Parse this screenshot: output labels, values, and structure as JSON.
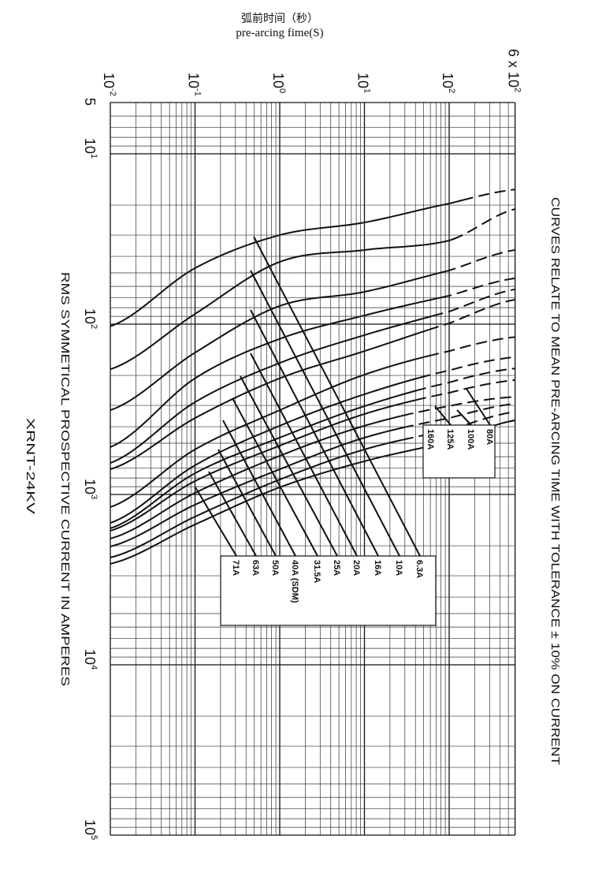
{
  "chart_data": {
    "type": "line",
    "title_cn": "弧前时间（秒）",
    "title_en": "pre-arcing fime(S)",
    "model": "XRNT-24KV",
    "note": "CURVES RELATE TO MEAN PRE-ARCING TIME WITH TOLERANCE ± 10% ON CURRENT",
    "time_axis": {
      "scale": "log",
      "range": [
        0.01,
        600
      ],
      "position": "top",
      "ticks": [
        {
          "value": 0.01,
          "base": "10",
          "exp": "-2"
        },
        {
          "value": 0.1,
          "base": "10",
          "exp": "-1"
        },
        {
          "value": 1,
          "base": "10",
          "exp": "0"
        },
        {
          "value": 10,
          "base": "10",
          "exp": "1"
        },
        {
          "value": 100,
          "base": "10",
          "exp": "2"
        },
        {
          "value": 600,
          "base": "6 x 10",
          "exp": "2"
        }
      ]
    },
    "current_axis": {
      "label": "RMS SYMMETICAL PROSPECTIVE CURRENT IN AMPERES",
      "scale": "log",
      "range": [
        5,
        100000
      ],
      "direction": "increasing downward",
      "ticks": [
        {
          "value": 5,
          "base": "5",
          "exp": ""
        },
        {
          "value": 10,
          "base": "10",
          "exp": "1"
        },
        {
          "value": 100,
          "base": "10",
          "exp": "2"
        },
        {
          "value": 1000,
          "base": "10",
          "exp": "3"
        },
        {
          "value": 10000,
          "base": "10",
          "exp": "4"
        },
        {
          "value": 100000,
          "base": "10",
          "exp": "5"
        }
      ]
    },
    "grid": true,
    "times": [
      0.01,
      0.1,
      1,
      10,
      100,
      600
    ],
    "series": [
      {
        "name": "6.3A",
        "current": [
          103,
          46.9,
          30.0,
          25.3,
          19.6,
          16.2
        ],
        "dashed_from": 150
      },
      {
        "name": "10A",
        "current": [
          184,
          87.1,
          43.1,
          36.7,
          32.3,
          21.1
        ],
        "dashed_from": 120
      },
      {
        "name": "16A",
        "current": [
          320,
          147,
          78.2,
          64.6,
          48.4,
          36.7
        ],
        "dashed_from": 90
      },
      {
        "name": "20A",
        "current": [
          527,
          208,
          122,
          88.9,
          68.1,
          53.8
        ],
        "dashed_from": 80
      },
      {
        "name": "25A",
        "current": [
          653,
          287,
          169,
          116,
          84.3,
          62.5
        ],
        "dashed_from": 70
      },
      {
        "name": "31.5A",
        "current": [
          711,
          356,
          208,
          144,
          98.9,
          71.8
        ],
        "dashed_from": 60
      },
      {
        "name": "40A (SDM)",
        "current": [
          1186,
          544,
          320,
          198,
          144,
          119
        ],
        "dashed_from": 60
      },
      {
        "name": "50A",
        "current": [
          1469,
          674,
          395,
          258,
          187,
          156
        ],
        "dashed_from": 50
      },
      {
        "name": "63A",
        "current": [
          1581,
          750,
          464,
          303,
          220,
          182
        ],
        "dashed_from": 40
      },
      {
        "name": "71A",
        "current": [
          1633,
          834,
          517,
          337,
          253,
          213
        ],
        "dashed_from": 40
      },
      {
        "name": "80A",
        "current": [
          1815,
          979,
          593,
          395,
          303,
          267
        ],
        "dashed_from": 30
      },
      {
        "name": "100A",
        "current": [
          2020,
          1148,
          711,
          464,
          356,
          293
        ],
        "dashed_from": 30
      },
      {
        "name": "125A",
        "current": [
          2344,
          1349,
          817,
          544,
          417,
          327
        ],
        "dashed_from": 30
      },
      {
        "name": "160A",
        "current": [
          2553,
          1500,
          908,
          638,
          490,
          367
        ],
        "dashed_from": 600
      }
    ]
  }
}
